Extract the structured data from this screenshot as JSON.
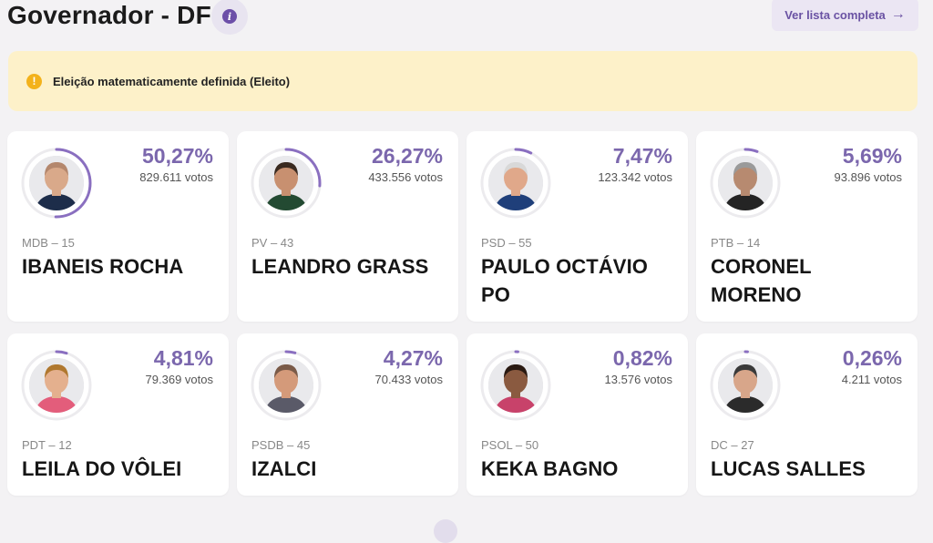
{
  "header": {
    "title": "Governador - DF",
    "list_button": "Ver lista completa",
    "list_arrow": "→",
    "info_glyph": "i"
  },
  "alert": {
    "glyph": "!",
    "text": "Eleição matematicamente definida (Eleito)"
  },
  "colors": {
    "accent": "#7b67ad",
    "ring": "#8a6fc0",
    "alert_bg": "#fdf1c9",
    "alert_icon": "#f3b21b"
  },
  "candidates": [
    {
      "pct": "50,27%",
      "share": 50.27,
      "votes": "829.611 votos",
      "party": "MDB – 15",
      "name_lines": [
        "IBANEIS ROCHA"
      ],
      "skin": "#d9a98a",
      "hair": "#b4876d",
      "shirt": "#1d2d4a"
    },
    {
      "pct": "26,27%",
      "share": 26.27,
      "votes": "433.556 votos",
      "party": "PV – 43",
      "name_lines": [
        "LEANDRO GRASS"
      ],
      "skin": "#c89070",
      "hair": "#3a2a20",
      "shirt": "#234a32"
    },
    {
      "pct": "7,47%",
      "share": 7.47,
      "votes": "123.342 votos",
      "party": "PSD – 55",
      "name_lines": [
        "PAULO OCTÁVIO",
        "PO"
      ],
      "skin": "#e0a88a",
      "hair": "#d8d8d8",
      "shirt": "#1f3f7a"
    },
    {
      "pct": "5,69%",
      "share": 5.69,
      "votes": "93.896 votos",
      "party": "PTB – 14",
      "name_lines": [
        "CORONEL",
        "MORENO"
      ],
      "skin": "#b78a70",
      "hair": "#9a9a9a",
      "shirt": "#242424"
    },
    {
      "pct": "4,81%",
      "share": 4.81,
      "votes": "79.369 votos",
      "party": "PDT – 12",
      "name_lines": [
        "LEILA DO VÔLEI"
      ],
      "skin": "#e4b08e",
      "hair": "#b0782f",
      "shirt": "#e35d7b"
    },
    {
      "pct": "4,27%",
      "share": 4.27,
      "votes": "70.433 votos",
      "party": "PSDB – 45",
      "name_lines": [
        "IZALCI"
      ],
      "skin": "#d49a7a",
      "hair": "#7a5a48",
      "shirt": "#5a5a68"
    },
    {
      "pct": "0,82%",
      "share": 0.82,
      "votes": "13.576 votos",
      "party": "PSOL – 50",
      "name_lines": [
        "KEKA BAGNO"
      ],
      "skin": "#8a5a40",
      "hair": "#2a1a12",
      "shirt": "#c8426a"
    },
    {
      "pct": "0,26%",
      "share": 0.26,
      "votes": "4.211 votos",
      "party": "DC – 27",
      "name_lines": [
        "LUCAS SALLES"
      ],
      "skin": "#d8a68a",
      "hair": "#3a3a3a",
      "shirt": "#2b2b2b"
    }
  ]
}
